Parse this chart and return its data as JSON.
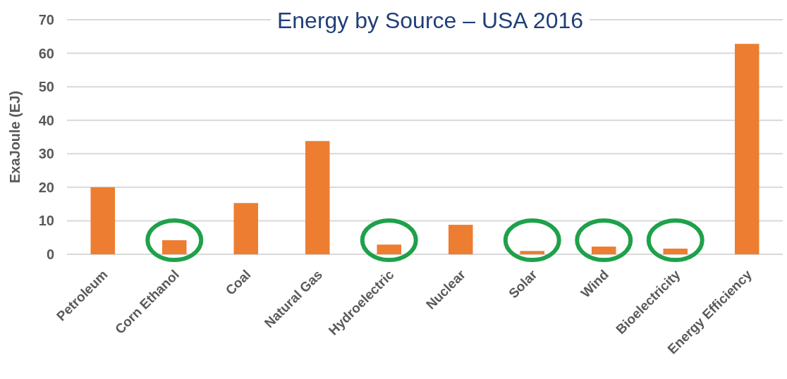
{
  "chart_data": {
    "type": "bar",
    "title": "Energy by Source – USA 2016",
    "ylabel": "ExaJoule (EJ)",
    "categories": [
      "Petroleum",
      "Corn Ethanol",
      "Coal",
      "Natural Gas",
      "Hydroelectric",
      "Nuclear",
      "Solar",
      "Wind",
      "Bioelectricity",
      "Energy Efficiency"
    ],
    "values": [
      20,
      4.2,
      15.3,
      33.8,
      2.9,
      8.8,
      1.0,
      2.3,
      1.7,
      62.8
    ],
    "color": "#ed7d31",
    "ylim": [
      0,
      70
    ],
    "yticks": [
      0,
      10,
      20,
      30,
      40,
      50,
      60,
      70
    ],
    "grid": "y"
  }
}
